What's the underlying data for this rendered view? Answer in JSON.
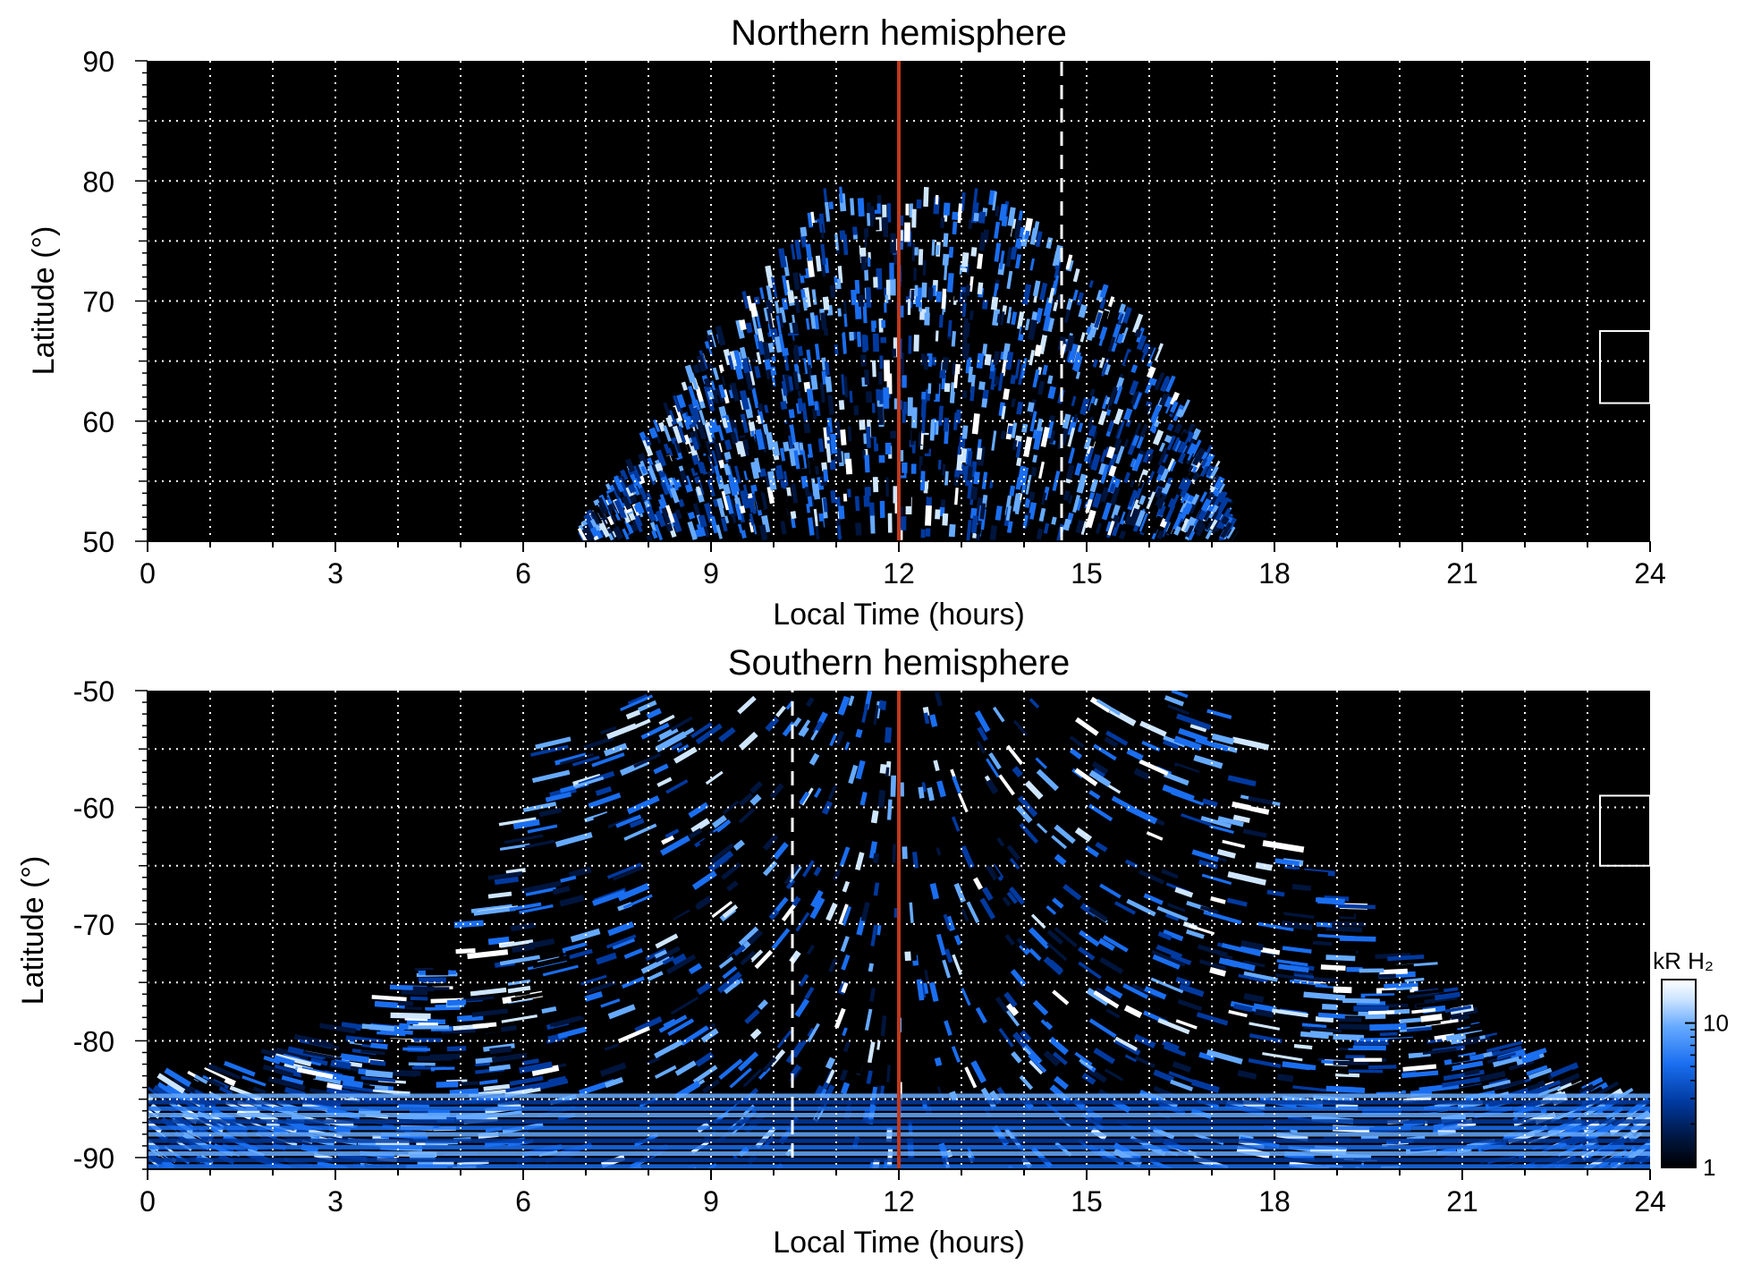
{
  "chart_data": [
    {
      "type": "heatmap",
      "title": "Northern hemisphere",
      "xlabel": "Local Time (hours)",
      "ylabel": "Latitude (°)",
      "xlim": [
        0,
        24
      ],
      "ylim": [
        50,
        90
      ],
      "x_ticks": [
        0,
        3,
        6,
        9,
        12,
        15,
        18,
        21,
        24
      ],
      "y_ticks": [
        50,
        60,
        70,
        80,
        90
      ],
      "grid": true,
      "noon_line_x": 12,
      "dashed_line": {
        "x": 14.6,
        "y_from": 50,
        "y_to": 90
      },
      "inset_box": {
        "x": [
          23.2,
          24
        ],
        "y": [
          61.5,
          67.5
        ]
      },
      "emission_region": {
        "lt_range": [
          7,
          17.3
        ],
        "edge_latitude": [
          [
            7.0,
            50
          ],
          [
            8.0,
            58
          ],
          [
            9.0,
            66
          ],
          [
            10.0,
            72
          ],
          [
            11.0,
            79.5
          ],
          [
            11.5,
            78
          ],
          [
            12.0,
            77.5
          ],
          [
            12.5,
            78
          ],
          [
            13.5,
            79
          ],
          [
            15.0,
            72
          ],
          [
            16.0,
            66
          ],
          [
            17.0,
            56
          ],
          [
            17.3,
            50
          ]
        ],
        "bright_arc": [
          [
            9.5,
            73
          ],
          [
            10.5,
            70
          ],
          [
            11.0,
            70
          ],
          [
            12.0,
            71
          ],
          [
            13.0,
            71
          ],
          [
            14.0,
            70
          ],
          [
            15.0,
            71
          ],
          [
            16.0,
            68
          ]
        ]
      }
    },
    {
      "type": "heatmap",
      "title": "Southern hemisphere",
      "xlabel": "Local Time (hours)",
      "ylabel": "Latitude (°)",
      "xlim": [
        0,
        24
      ],
      "ylim": [
        -91,
        -50
      ],
      "x_ticks": [
        0,
        3,
        6,
        9,
        12,
        15,
        18,
        21,
        24
      ],
      "y_ticks": [
        -50,
        -60,
        -70,
        -80,
        -90
      ],
      "grid": true,
      "noon_line_x": 12,
      "dashed_line": {
        "x": 10.3,
        "y_from": -90,
        "y_to": -50
      },
      "inset_box": {
        "x": [
          23.2,
          24
        ],
        "y": [
          -65,
          -59
        ]
      },
      "emission_region": {
        "edge_latitude": [
          [
            0.0,
            -84
          ],
          [
            1.5,
            -83
          ],
          [
            3.0,
            -80
          ],
          [
            4.5,
            -75
          ],
          [
            5.5,
            -68
          ],
          [
            6.3,
            -60
          ],
          [
            7.0,
            -50
          ],
          [
            17.0,
            -50
          ],
          [
            18.0,
            -60
          ],
          [
            19.0,
            -68
          ],
          [
            20.0,
            -74
          ],
          [
            21.0,
            -78
          ],
          [
            22.5,
            -83
          ],
          [
            24.0,
            -86
          ]
        ],
        "bright_arcs": [
          [
            [
              6.6,
              -50
            ],
            [
              6.5,
              -58
            ],
            [
              6.3,
              -66
            ],
            [
              6.0,
              -73
            ],
            [
              5.5,
              -78
            ]
          ],
          [
            [
              17.7,
              -50
            ],
            [
              17.6,
              -58
            ],
            [
              17.5,
              -66
            ],
            [
              17.3,
              -74
            ],
            [
              17.5,
              -80
            ]
          ]
        ]
      }
    }
  ],
  "colorbar": {
    "label": "kR H₂",
    "scale": "log",
    "range": [
      1,
      20
    ],
    "tick_labels": [
      "1",
      "10"
    ],
    "colors": [
      "#000000",
      "#00153d",
      "#003aa0",
      "#1a6ef0",
      "#66aaff",
      "#cfe6ff",
      "#ffffff"
    ]
  },
  "colors": {
    "noon_line": "#c0391b",
    "grid": "#ffffff",
    "background": "#000000"
  }
}
